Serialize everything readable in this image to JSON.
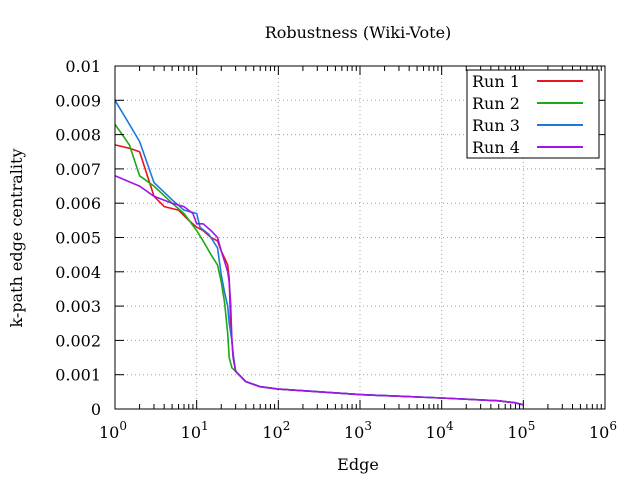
{
  "chart_data": {
    "type": "line",
    "title": "Robustness (Wiki-Vote)",
    "xlabel": "Edge",
    "ylabel": "k-path edge centrality",
    "xscale": "log",
    "xlim": [
      1,
      1000000
    ],
    "ylim": [
      0,
      0.01
    ],
    "grid": true,
    "legend_position": "top-right",
    "x_ticks": [
      {
        "value": 1,
        "base": "10",
        "exp": "0"
      },
      {
        "value": 10,
        "base": "10",
        "exp": "1"
      },
      {
        "value": 100,
        "base": "10",
        "exp": "2"
      },
      {
        "value": 1000,
        "base": "10",
        "exp": "3"
      },
      {
        "value": 10000,
        "base": "10",
        "exp": "4"
      },
      {
        "value": 100000,
        "base": "10",
        "exp": "5"
      },
      {
        "value": 1000000,
        "base": "10",
        "exp": "6"
      }
    ],
    "y_ticks": [
      {
        "value": 0,
        "label": "0"
      },
      {
        "value": 0.001,
        "label": "0.001"
      },
      {
        "value": 0.002,
        "label": "0.002"
      },
      {
        "value": 0.003,
        "label": "0.003"
      },
      {
        "value": 0.004,
        "label": "0.004"
      },
      {
        "value": 0.005,
        "label": "0.005"
      },
      {
        "value": 0.006,
        "label": "0.006"
      },
      {
        "value": 0.007,
        "label": "0.007"
      },
      {
        "value": 0.008,
        "label": "0.008"
      },
      {
        "value": 0.009,
        "label": "0.009"
      },
      {
        "value": 0.01,
        "label": "0.01"
      }
    ],
    "series": [
      {
        "name": "Run 1",
        "color": "#e8141e",
        "points": [
          [
            1,
            0.0077
          ],
          [
            1.5,
            0.0076
          ],
          [
            2,
            0.0075
          ],
          [
            3,
            0.0062
          ],
          [
            4,
            0.0059
          ],
          [
            6,
            0.0058
          ],
          [
            8,
            0.0055
          ],
          [
            10,
            0.0053
          ],
          [
            12,
            0.0052
          ],
          [
            15,
            0.005
          ],
          [
            18,
            0.0049
          ],
          [
            20,
            0.0046
          ],
          [
            22,
            0.0044
          ],
          [
            24,
            0.0042
          ],
          [
            25,
            0.0038
          ],
          [
            26,
            0.0025
          ],
          [
            27,
            0.002
          ],
          [
            28,
            0.0015
          ],
          [
            30,
            0.0011
          ],
          [
            40,
            0.0008
          ],
          [
            60,
            0.00065
          ],
          [
            100,
            0.00058
          ],
          [
            1000,
            0.00042
          ],
          [
            10000,
            0.00032
          ],
          [
            50000,
            0.00024
          ],
          [
            80000,
            0.00018
          ],
          [
            100000,
            0.00012
          ]
        ]
      },
      {
        "name": "Run 2",
        "color": "#1aaa14",
        "points": [
          [
            1,
            0.0083
          ],
          [
            1.5,
            0.0077
          ],
          [
            2,
            0.0068
          ],
          [
            3,
            0.0065
          ],
          [
            5,
            0.006
          ],
          [
            7,
            0.0057
          ],
          [
            10,
            0.0052
          ],
          [
            12,
            0.0049
          ],
          [
            15,
            0.0045
          ],
          [
            18,
            0.0042
          ],
          [
            20,
            0.0037
          ],
          [
            22,
            0.0031
          ],
          [
            24,
            0.0022
          ],
          [
            25,
            0.0015
          ],
          [
            27,
            0.0012
          ],
          [
            30,
            0.0011
          ],
          [
            40,
            0.0008
          ],
          [
            60,
            0.00065
          ],
          [
            100,
            0.00058
          ],
          [
            1000,
            0.00042
          ],
          [
            10000,
            0.00032
          ],
          [
            50000,
            0.00024
          ],
          [
            80000,
            0.00018
          ],
          [
            100000,
            0.00012
          ]
        ]
      },
      {
        "name": "Run 3",
        "color": "#1e78dc",
        "points": [
          [
            1,
            0.009
          ],
          [
            1.5,
            0.0083
          ],
          [
            2,
            0.0078
          ],
          [
            3,
            0.0066
          ],
          [
            5,
            0.0061
          ],
          [
            7,
            0.0058
          ],
          [
            10,
            0.0057
          ],
          [
            11,
            0.0053
          ],
          [
            14,
            0.0051
          ],
          [
            18,
            0.0047
          ],
          [
            20,
            0.0039
          ],
          [
            22,
            0.0034
          ],
          [
            24,
            0.003
          ],
          [
            25,
            0.0025
          ],
          [
            27,
            0.002
          ],
          [
            28,
            0.0016
          ],
          [
            30,
            0.0011
          ],
          [
            40,
            0.0008
          ],
          [
            60,
            0.00065
          ],
          [
            100,
            0.00058
          ],
          [
            1000,
            0.00042
          ],
          [
            10000,
            0.00032
          ],
          [
            50000,
            0.00024
          ],
          [
            80000,
            0.00018
          ],
          [
            100000,
            0.00012
          ]
        ]
      },
      {
        "name": "Run 4",
        "color": "#a014e6",
        "points": [
          [
            1,
            0.0068
          ],
          [
            2,
            0.0065
          ],
          [
            3,
            0.0062
          ],
          [
            5,
            0.006
          ],
          [
            7,
            0.0059
          ],
          [
            9,
            0.0057
          ],
          [
            10,
            0.0054
          ],
          [
            12,
            0.0054
          ],
          [
            15,
            0.0052
          ],
          [
            18,
            0.005
          ],
          [
            20,
            0.0046
          ],
          [
            22,
            0.0043
          ],
          [
            24,
            0.004
          ],
          [
            25,
            0.0037
          ],
          [
            26,
            0.0031
          ],
          [
            27,
            0.002
          ],
          [
            28,
            0.0015
          ],
          [
            30,
            0.0011
          ],
          [
            40,
            0.0008
          ],
          [
            60,
            0.00065
          ],
          [
            100,
            0.00058
          ],
          [
            1000,
            0.00042
          ],
          [
            10000,
            0.00032
          ],
          [
            50000,
            0.00024
          ],
          [
            80000,
            0.00018
          ],
          [
            100000,
            0.00012
          ]
        ]
      }
    ]
  }
}
